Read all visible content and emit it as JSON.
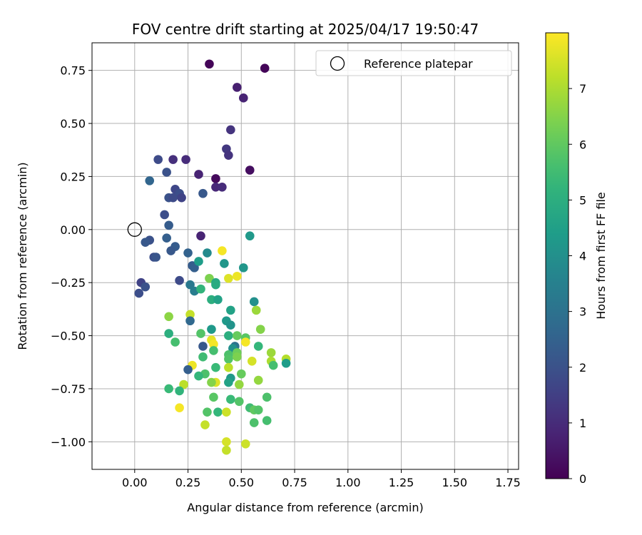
{
  "chart_data": {
    "type": "scatter",
    "title": "FOV centre drift starting at 2025/04/17 19:50:47",
    "xlabel": "Angular distance from reference (arcmin)",
    "ylabel": "Rotation from reference (arcmin)",
    "xlim": [
      -0.2,
      1.8
    ],
    "ylim": [
      -1.13,
      0.88
    ],
    "x_ticks": [
      0.0,
      0.25,
      0.5,
      0.75,
      1.0,
      1.25,
      1.5,
      1.75
    ],
    "x_tick_labels": [
      "0.00",
      "0.25",
      "0.50",
      "0.75",
      "1.00",
      "1.25",
      "1.50",
      "1.75"
    ],
    "y_ticks": [
      0.75,
      0.5,
      0.25,
      0.0,
      -0.25,
      -0.5,
      -0.75,
      -1.0
    ],
    "y_tick_labels": [
      "0.75",
      "0.50",
      "0.25",
      "0.00",
      "−0.25",
      "−0.50",
      "−0.75",
      "−1.00"
    ],
    "grid": true,
    "legend": {
      "placement": "upper-right",
      "entries": [
        "Reference platepar"
      ]
    },
    "reference_point": {
      "x": 0.0,
      "y": 0.0
    },
    "colorbar": {
      "label": "Hours from first FF file",
      "colormap": "viridis",
      "range": [
        0,
        8
      ],
      "ticks": [
        0,
        1,
        2,
        3,
        4,
        5,
        6,
        7
      ],
      "tick_labels": [
        "0",
        "1",
        "2",
        "3",
        "4",
        "5",
        "6",
        "7"
      ]
    },
    "points": [
      {
        "x": 0.35,
        "y": 0.78,
        "h": 0.1
      },
      {
        "x": 0.61,
        "y": 0.76,
        "h": 0.1
      },
      {
        "x": 0.48,
        "y": 0.67,
        "h": 0.7
      },
      {
        "x": 0.51,
        "y": 0.62,
        "h": 0.8
      },
      {
        "x": 0.45,
        "y": 0.47,
        "h": 1.2
      },
      {
        "x": 0.43,
        "y": 0.38,
        "h": 1.3
      },
      {
        "x": 0.44,
        "y": 0.35,
        "h": 1.2
      },
      {
        "x": 0.54,
        "y": 0.28,
        "h": 0.3
      },
      {
        "x": 0.18,
        "y": 0.33,
        "h": 1.1
      },
      {
        "x": 0.24,
        "y": 0.33,
        "h": 1.0
      },
      {
        "x": 0.3,
        "y": 0.26,
        "h": 0.8
      },
      {
        "x": 0.38,
        "y": 0.24,
        "h": 0.2
      },
      {
        "x": 0.38,
        "y": 0.2,
        "h": 0.9
      },
      {
        "x": 0.41,
        "y": 0.2,
        "h": 1.0
      },
      {
        "x": 0.31,
        "y": -0.03,
        "h": 0.8
      },
      {
        "x": 0.11,
        "y": 0.33,
        "h": 1.8
      },
      {
        "x": 0.15,
        "y": 0.27,
        "h": 2.0
      },
      {
        "x": 0.07,
        "y": 0.23,
        "h": 2.6
      },
      {
        "x": 0.19,
        "y": 0.19,
        "h": 1.7
      },
      {
        "x": 0.21,
        "y": 0.17,
        "h": 1.9
      },
      {
        "x": 0.22,
        "y": 0.15,
        "h": 1.6
      },
      {
        "x": 0.16,
        "y": 0.15,
        "h": 2.0
      },
      {
        "x": 0.18,
        "y": 0.15,
        "h": 1.8
      },
      {
        "x": 0.32,
        "y": 0.17,
        "h": 2.2
      },
      {
        "x": 0.14,
        "y": 0.07,
        "h": 1.9
      },
      {
        "x": 0.16,
        "y": 0.02,
        "h": 2.3
      },
      {
        "x": 0.15,
        "y": -0.04,
        "h": 2.4
      },
      {
        "x": 0.07,
        "y": -0.05,
        "h": 2.0
      },
      {
        "x": 0.05,
        "y": -0.06,
        "h": 2.2
      },
      {
        "x": 0.09,
        "y": -0.13,
        "h": 1.9
      },
      {
        "x": 0.1,
        "y": -0.13,
        "h": 2.1
      },
      {
        "x": 0.19,
        "y": -0.08,
        "h": 2.3
      },
      {
        "x": 0.17,
        "y": -0.1,
        "h": 2.2
      },
      {
        "x": 0.25,
        "y": -0.11,
        "h": 2.5
      },
      {
        "x": 0.34,
        "y": -0.11,
        "h": 3.8
      },
      {
        "x": 0.27,
        "y": -0.17,
        "h": 2.3
      },
      {
        "x": 0.28,
        "y": -0.18,
        "h": 2.4
      },
      {
        "x": 0.21,
        "y": -0.24,
        "h": 1.8
      },
      {
        "x": 0.03,
        "y": -0.25,
        "h": 1.6
      },
      {
        "x": 0.05,
        "y": -0.27,
        "h": 2.0
      },
      {
        "x": 0.02,
        "y": -0.3,
        "h": 1.9
      },
      {
        "x": 0.26,
        "y": -0.26,
        "h": 3.2
      },
      {
        "x": 0.28,
        "y": -0.29,
        "h": 3.4
      },
      {
        "x": 0.31,
        "y": -0.28,
        "h": 5.2
      },
      {
        "x": 0.3,
        "y": -0.15,
        "h": 4.4
      },
      {
        "x": 0.42,
        "y": -0.16,
        "h": 4.2
      },
      {
        "x": 0.41,
        "y": -0.1,
        "h": 7.9
      },
      {
        "x": 0.35,
        "y": -0.23,
        "h": 6.4
      },
      {
        "x": 0.38,
        "y": -0.25,
        "h": 4.8
      },
      {
        "x": 0.38,
        "y": -0.26,
        "h": 4.9
      },
      {
        "x": 0.44,
        "y": -0.23,
        "h": 7.6
      },
      {
        "x": 0.48,
        "y": -0.22,
        "h": 7.8
      },
      {
        "x": 0.51,
        "y": -0.18,
        "h": 4.2
      },
      {
        "x": 0.54,
        "y": -0.03,
        "h": 4.3
      },
      {
        "x": 0.36,
        "y": -0.33,
        "h": 5.0
      },
      {
        "x": 0.39,
        "y": -0.33,
        "h": 4.6
      },
      {
        "x": 0.56,
        "y": -0.34,
        "h": 4.0
      },
      {
        "x": 0.45,
        "y": -0.38,
        "h": 4.6
      },
      {
        "x": 0.57,
        "y": -0.38,
        "h": 6.8
      },
      {
        "x": 0.26,
        "y": -0.4,
        "h": 7.3
      },
      {
        "x": 0.16,
        "y": -0.41,
        "h": 6.6
      },
      {
        "x": 0.26,
        "y": -0.43,
        "h": 2.7
      },
      {
        "x": 0.43,
        "y": -0.43,
        "h": 4.3
      },
      {
        "x": 0.45,
        "y": -0.45,
        "h": 4.1
      },
      {
        "x": 0.36,
        "y": -0.47,
        "h": 4.3
      },
      {
        "x": 0.59,
        "y": -0.47,
        "h": 6.5
      },
      {
        "x": 0.16,
        "y": -0.49,
        "h": 5.0
      },
      {
        "x": 0.31,
        "y": -0.49,
        "h": 5.8
      },
      {
        "x": 0.44,
        "y": -0.5,
        "h": 5.0
      },
      {
        "x": 0.48,
        "y": -0.5,
        "h": 6.1
      },
      {
        "x": 0.52,
        "y": -0.51,
        "h": 5.9
      },
      {
        "x": 0.36,
        "y": -0.52,
        "h": 7.7
      },
      {
        "x": 0.19,
        "y": -0.53,
        "h": 5.6
      },
      {
        "x": 0.37,
        "y": -0.54,
        "h": 7.9
      },
      {
        "x": 0.32,
        "y": -0.55,
        "h": 2.2
      },
      {
        "x": 0.52,
        "y": -0.53,
        "h": 7.9
      },
      {
        "x": 0.58,
        "y": -0.55,
        "h": 5.3
      },
      {
        "x": 0.47,
        "y": -0.55,
        "h": 3.0
      },
      {
        "x": 0.46,
        "y": -0.56,
        "h": 4.0
      },
      {
        "x": 0.37,
        "y": -0.57,
        "h": 5.6
      },
      {
        "x": 0.44,
        "y": -0.59,
        "h": 5.7
      },
      {
        "x": 0.48,
        "y": -0.58,
        "h": 6.2
      },
      {
        "x": 0.48,
        "y": -0.6,
        "h": 6.4
      },
      {
        "x": 0.64,
        "y": -0.58,
        "h": 6.8
      },
      {
        "x": 0.32,
        "y": -0.6,
        "h": 5.5
      },
      {
        "x": 0.44,
        "y": -0.61,
        "h": 5.8
      },
      {
        "x": 0.64,
        "y": -0.62,
        "h": 7.0
      },
      {
        "x": 0.71,
        "y": -0.61,
        "h": 7.1
      },
      {
        "x": 0.71,
        "y": -0.63,
        "h": 4.4
      },
      {
        "x": 0.65,
        "y": -0.64,
        "h": 5.6
      },
      {
        "x": 0.55,
        "y": -0.62,
        "h": 7.5
      },
      {
        "x": 0.27,
        "y": -0.64,
        "h": 7.8
      },
      {
        "x": 0.38,
        "y": -0.65,
        "h": 5.4
      },
      {
        "x": 0.44,
        "y": -0.65,
        "h": 7.2
      },
      {
        "x": 0.25,
        "y": -0.66,
        "h": 2.4
      },
      {
        "x": 0.5,
        "y": -0.68,
        "h": 6.1
      },
      {
        "x": 0.33,
        "y": -0.68,
        "h": 5.7
      },
      {
        "x": 0.3,
        "y": -0.69,
        "h": 5.3
      },
      {
        "x": 0.45,
        "y": -0.7,
        "h": 4.3
      },
      {
        "x": 0.44,
        "y": -0.72,
        "h": 4.6
      },
      {
        "x": 0.38,
        "y": -0.72,
        "h": 7.6
      },
      {
        "x": 0.36,
        "y": -0.72,
        "h": 6.5
      },
      {
        "x": 0.58,
        "y": -0.71,
        "h": 6.7
      },
      {
        "x": 0.49,
        "y": -0.73,
        "h": 6.7
      },
      {
        "x": 0.23,
        "y": -0.73,
        "h": 7.2
      },
      {
        "x": 0.16,
        "y": -0.75,
        "h": 5.4
      },
      {
        "x": 0.21,
        "y": -0.76,
        "h": 5.2
      },
      {
        "x": 0.37,
        "y": -0.79,
        "h": 5.9
      },
      {
        "x": 0.45,
        "y": -0.8,
        "h": 5.4
      },
      {
        "x": 0.49,
        "y": -0.81,
        "h": 5.8
      },
      {
        "x": 0.62,
        "y": -0.79,
        "h": 5.7
      },
      {
        "x": 0.21,
        "y": -0.84,
        "h": 7.9
      },
      {
        "x": 0.54,
        "y": -0.84,
        "h": 5.5
      },
      {
        "x": 0.56,
        "y": -0.85,
        "h": 6.0
      },
      {
        "x": 0.58,
        "y": -0.85,
        "h": 5.8
      },
      {
        "x": 0.34,
        "y": -0.86,
        "h": 5.8
      },
      {
        "x": 0.39,
        "y": -0.86,
        "h": 5.3
      },
      {
        "x": 0.43,
        "y": -0.86,
        "h": 7.4
      },
      {
        "x": 0.56,
        "y": -0.91,
        "h": 5.7
      },
      {
        "x": 0.62,
        "y": -0.9,
        "h": 5.6
      },
      {
        "x": 0.33,
        "y": -0.92,
        "h": 7.3
      },
      {
        "x": 0.43,
        "y": -1.0,
        "h": 7.5
      },
      {
        "x": 0.52,
        "y": -1.01,
        "h": 7.4
      },
      {
        "x": 0.43,
        "y": -1.04,
        "h": 7.3
      }
    ]
  }
}
